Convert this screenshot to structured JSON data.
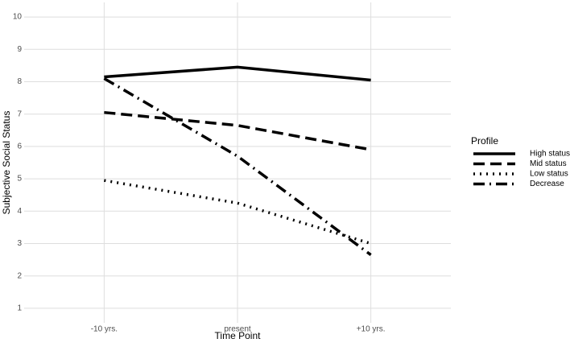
{
  "chart_data": {
    "type": "line",
    "x_label": "Time Point",
    "y_label": "Subjective Social Status",
    "categories": [
      "-10 yrs.",
      "present",
      "+10 yrs."
    ],
    "series": [
      {
        "name": "High status",
        "color": "#000000",
        "dash": "solid",
        "values": [
          8.15,
          8.45,
          8.05
        ]
      },
      {
        "name": "Mid status",
        "color": "#000000",
        "dash": "dashed",
        "values": [
          7.05,
          6.65,
          5.9
        ]
      },
      {
        "name": "Low status",
        "color": "#000000",
        "dash": "dotted",
        "values": [
          4.95,
          4.25,
          3.0
        ]
      },
      {
        "name": "Decrease",
        "color": "#000000",
        "dash": "dashdot",
        "values": [
          8.1,
          5.7,
          2.65
        ]
      }
    ],
    "ylim": [
      0.55,
      10.45
    ],
    "yticks": [
      1,
      2,
      3,
      4,
      5,
      6,
      7,
      8,
      9,
      10
    ],
    "grid": true,
    "legend_title": "Profile",
    "legend_position": "right"
  }
}
